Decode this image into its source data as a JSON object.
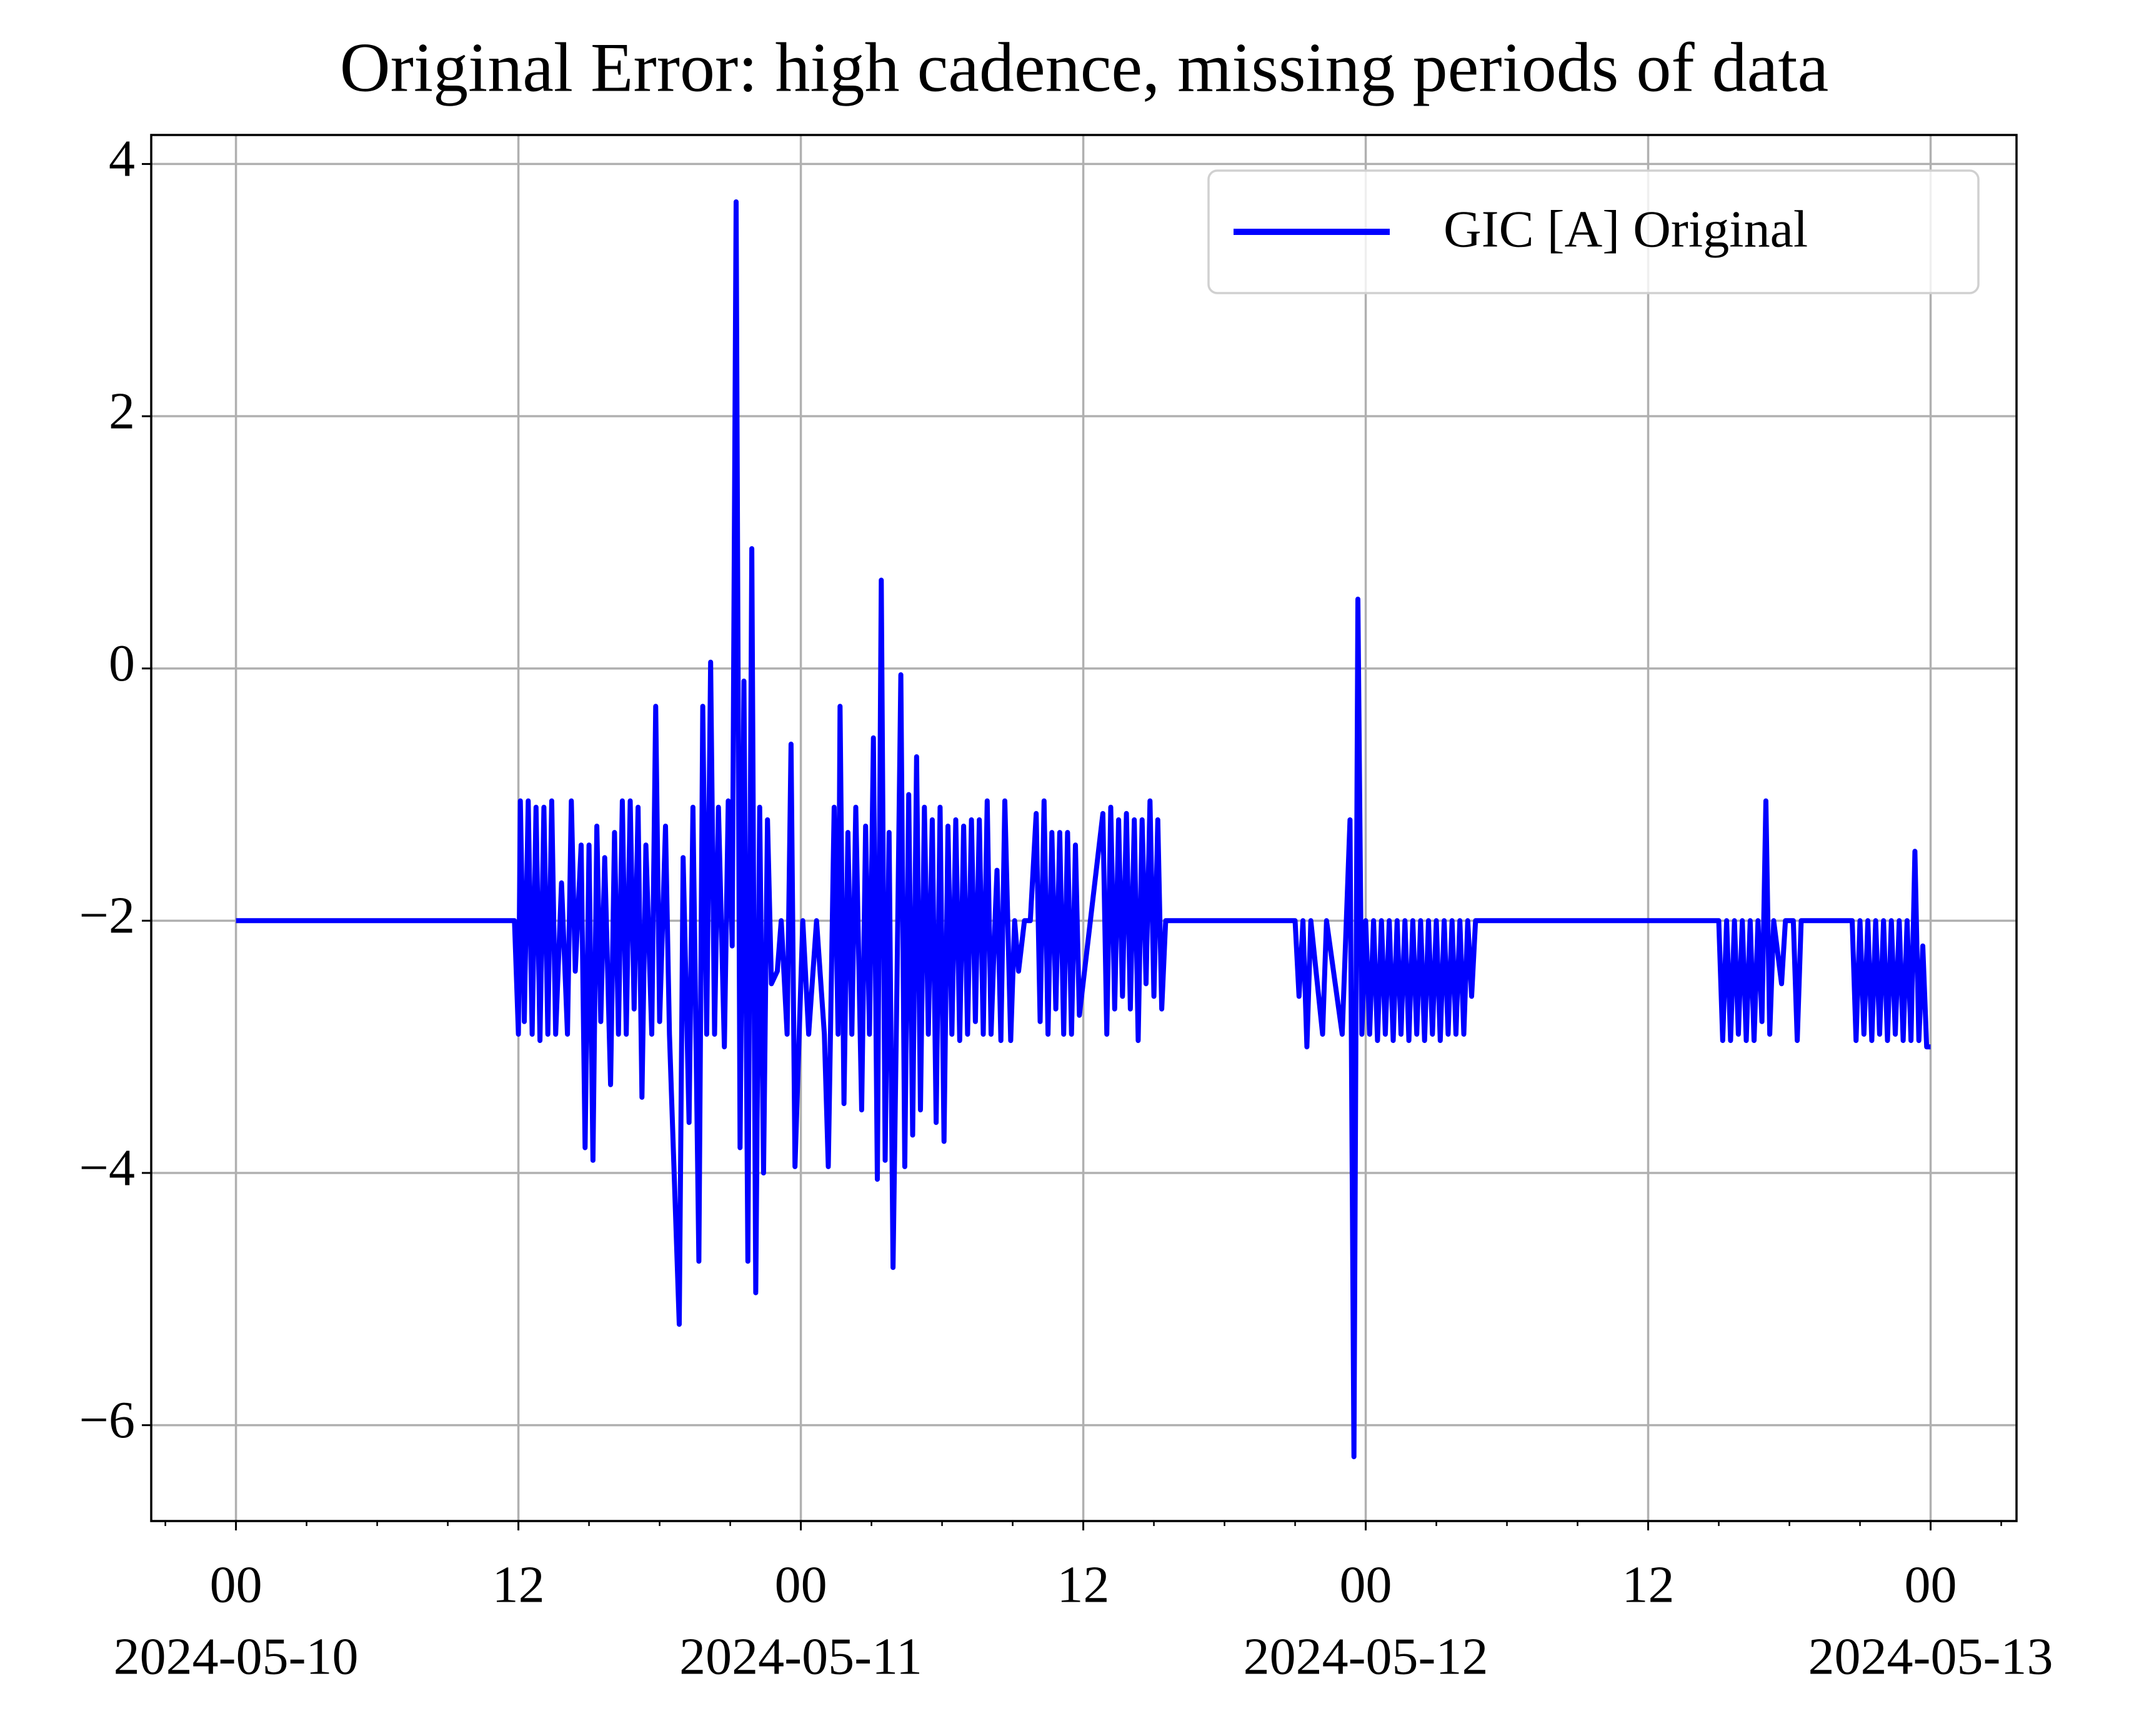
{
  "chart_data": {
    "type": "line",
    "title": "Original Error: high cadence, missing periods of data",
    "x": [
      "2024-05-10T00:00",
      "2024-05-10T11:50",
      "2024-05-10T12:00",
      "2024-05-10T12:05",
      "2024-05-10T12:15",
      "2024-05-10T12:25",
      "2024-05-10T12:35",
      "2024-05-10T12:45",
      "2024-05-10T12:55",
      "2024-05-10T13:05",
      "2024-05-10T13:15",
      "2024-05-10T13:25",
      "2024-05-10T13:35",
      "2024-05-10T13:50",
      "2024-05-10T14:05",
      "2024-05-10T14:15",
      "2024-05-10T14:25",
      "2024-05-10T14:40",
      "2024-05-10T14:50",
      "2024-05-10T15:00",
      "2024-05-10T15:10",
      "2024-05-10T15:20",
      "2024-05-10T15:30",
      "2024-05-10T15:40",
      "2024-05-10T15:55",
      "2024-05-10T16:05",
      "2024-05-10T16:15",
      "2024-05-10T16:25",
      "2024-05-10T16:35",
      "2024-05-10T16:45",
      "2024-05-10T16:55",
      "2024-05-10T17:05",
      "2024-05-10T17:15",
      "2024-05-10T17:25",
      "2024-05-10T17:40",
      "2024-05-10T17:50",
      "2024-05-10T18:00",
      "2024-05-10T18:15",
      "2024-05-10T18:25",
      "2024-05-10T18:50",
      "2024-05-10T19:00",
      "2024-05-10T19:15",
      "2024-05-10T19:25",
      "2024-05-10T19:40",
      "2024-05-10T19:50",
      "2024-05-10T20:00",
      "2024-05-10T20:10",
      "2024-05-10T20:20",
      "2024-05-10T20:30",
      "2024-05-10T20:45",
      "2024-05-10T20:55",
      "2024-05-10T21:05",
      "2024-05-10T21:15",
      "2024-05-10T21:25",
      "2024-05-10T21:35",
      "2024-05-10T21:45",
      "2024-05-10T21:55",
      "2024-05-10T22:05",
      "2024-05-10T22:15",
      "2024-05-10T22:25",
      "2024-05-10T22:35",
      "2024-05-10T22:45",
      "2024-05-10T23:00",
      "2024-05-10T23:10",
      "2024-05-10T23:25",
      "2024-05-10T23:35",
      "2024-05-10T23:45",
      "2024-05-11T00:05",
      "2024-05-11T00:20",
      "2024-05-11T00:40",
      "2024-05-11T01:00",
      "2024-05-11T01:10",
      "2024-05-11T01:25",
      "2024-05-11T01:35",
      "2024-05-11T01:40",
      "2024-05-11T01:50",
      "2024-05-11T02:00",
      "2024-05-11T02:10",
      "2024-05-11T02:20",
      "2024-05-11T02:35",
      "2024-05-11T02:45",
      "2024-05-11T02:55",
      "2024-05-11T03:05",
      "2024-05-11T03:15",
      "2024-05-11T03:25",
      "2024-05-11T03:35",
      "2024-05-11T03:45",
      "2024-05-11T03:55",
      "2024-05-11T04:05",
      "2024-05-11T04:15",
      "2024-05-11T04:25",
      "2024-05-11T04:35",
      "2024-05-11T04:45",
      "2024-05-11T04:55",
      "2024-05-11T05:05",
      "2024-05-11T05:15",
      "2024-05-11T05:25",
      "2024-05-11T05:35",
      "2024-05-11T05:45",
      "2024-05-11T05:55",
      "2024-05-11T06:05",
      "2024-05-11T06:15",
      "2024-05-11T06:25",
      "2024-05-11T06:35",
      "2024-05-11T06:45",
      "2024-05-11T06:55",
      "2024-05-11T07:05",
      "2024-05-11T07:15",
      "2024-05-11T07:25",
      "2024-05-11T07:35",
      "2024-05-11T07:45",
      "2024-05-11T07:55",
      "2024-05-11T08:05",
      "2024-05-11T08:15",
      "2024-05-11T08:20",
      "2024-05-11T08:30",
      "2024-05-11T08:40",
      "2024-05-11T08:55",
      "2024-05-11T09:05",
      "2024-05-11T09:15",
      "2024-05-11T09:30",
      "2024-05-11T09:45",
      "2024-05-11T10:00",
      "2024-05-11T10:10",
      "2024-05-11T10:20",
      "2024-05-11T10:30",
      "2024-05-11T10:40",
      "2024-05-11T10:50",
      "2024-05-11T11:00",
      "2024-05-11T11:10",
      "2024-05-11T11:20",
      "2024-05-11T11:30",
      "2024-05-11T11:40",
      "2024-05-11T11:50",
      "2024-05-11T12:50",
      "2024-05-11T13:00",
      "2024-05-11T13:10",
      "2024-05-11T13:20",
      "2024-05-11T13:30",
      "2024-05-11T13:40",
      "2024-05-11T13:50",
      "2024-05-11T14:00",
      "2024-05-11T14:10",
      "2024-05-11T14:20",
      "2024-05-11T14:30",
      "2024-05-11T14:40",
      "2024-05-11T14:50",
      "2024-05-11T15:00",
      "2024-05-11T15:10",
      "2024-05-11T15:20",
      "2024-05-11T15:30",
      "2024-05-11T21:00",
      "2024-05-11T21:10",
      "2024-05-11T21:20",
      "2024-05-11T21:30",
      "2024-05-11T21:40",
      "2024-05-11T22:10",
      "2024-05-11T22:20",
      "2024-05-11T23:00",
      "2024-05-11T23:20",
      "2024-05-11T23:30",
      "2024-05-11T23:40",
      "2024-05-11T23:50",
      "2024-05-12T00:00",
      "2024-05-12T00:10",
      "2024-05-12T00:20",
      "2024-05-12T00:30",
      "2024-05-12T00:40",
      "2024-05-12T00:50",
      "2024-05-12T01:00",
      "2024-05-12T01:10",
      "2024-05-12T01:20",
      "2024-05-12T01:30",
      "2024-05-12T01:40",
      "2024-05-12T01:50",
      "2024-05-12T02:00",
      "2024-05-12T02:10",
      "2024-05-12T02:20",
      "2024-05-12T02:30",
      "2024-05-12T02:40",
      "2024-05-12T02:50",
      "2024-05-12T03:00",
      "2024-05-12T03:10",
      "2024-05-12T03:20",
      "2024-05-12T03:30",
      "2024-05-12T03:40",
      "2024-05-12T03:50",
      "2024-05-12T04:00",
      "2024-05-12T04:10",
      "2024-05-12T04:20",
      "2024-05-12T04:30",
      "2024-05-12T04:40",
      "2024-05-12T15:00",
      "2024-05-12T15:10",
      "2024-05-12T15:20",
      "2024-05-12T15:30",
      "2024-05-12T15:40",
      "2024-05-12T15:50",
      "2024-05-12T16:00",
      "2024-05-12T16:10",
      "2024-05-12T16:20",
      "2024-05-12T16:30",
      "2024-05-12T16:40",
      "2024-05-12T16:50",
      "2024-05-12T17:00",
      "2024-05-12T17:10",
      "2024-05-12T17:20",
      "2024-05-12T17:40",
      "2024-05-12T17:50",
      "2024-05-12T18:10",
      "2024-05-12T18:20",
      "2024-05-12T18:30",
      "2024-05-12T20:40",
      "2024-05-12T20:50",
      "2024-05-12T21:00",
      "2024-05-12T21:10",
      "2024-05-12T21:20",
      "2024-05-12T21:30",
      "2024-05-12T21:40",
      "2024-05-12T21:50",
      "2024-05-12T22:00",
      "2024-05-12T22:10",
      "2024-05-12T22:20",
      "2024-05-12T22:30",
      "2024-05-12T22:40",
      "2024-05-12T22:50",
      "2024-05-12T23:00",
      "2024-05-12T23:10",
      "2024-05-12T23:20",
      "2024-05-12T23:30",
      "2024-05-12T23:40",
      "2024-05-12T23:50",
      "2024-05-13T00:00"
    ],
    "series": [
      {
        "name": "GIC [A] Original",
        "color": "#0000ff",
        "values": [
          -2,
          -2,
          -2.9,
          -1.05,
          -2.8,
          -1.05,
          -2.9,
          -1.1,
          -2.95,
          -1.1,
          -2.9,
          -1.05,
          -2.9,
          -1.7,
          -2.9,
          -1.05,
          -2.4,
          -1.4,
          -3.8,
          -1.4,
          -3.9,
          -1.25,
          -2.8,
          -1.5,
          -3.3,
          -1.3,
          -2.9,
          -1.05,
          -2.9,
          -1.05,
          -2.7,
          -1.1,
          -3.4,
          -1.4,
          -2.9,
          -0.3,
          -2.8,
          -1.25,
          -2.9,
          -5.2,
          -1.5,
          -3.6,
          -1.1,
          -4.7,
          -0.3,
          -2.9,
          0.05,
          -2.9,
          -1.1,
          -3.0,
          -1.05,
          -2.2,
          3.7,
          -3.8,
          -0.1,
          -4.7,
          0.95,
          -4.95,
          -1.1,
          -4.0,
          -1.2,
          -2.5,
          -2.4,
          -2.0,
          -2.9,
          -0.6,
          -3.95,
          -2.0,
          -2.9,
          -2.0,
          -2.9,
          -3.95,
          -1.1,
          -2.9,
          -0.3,
          -3.45,
          -1.3,
          -2.9,
          -1.1,
          -3.5,
          -1.25,
          -2.9,
          -0.55,
          -4.05,
          0.7,
          -3.9,
          -1.3,
          -4.75,
          -2.5,
          -0.05,
          -3.95,
          -1.0,
          -3.7,
          -0.7,
          -3.5,
          -1.1,
          -2.9,
          -1.2,
          -3.6,
          -1.1,
          -3.75,
          -1.25,
          -2.9,
          -1.2,
          -2.95,
          -1.25,
          -2.9,
          -1.2,
          -2.8,
          -1.2,
          -2.9,
          -1.05,
          -2.9,
          -2.0,
          -1.6,
          -2.95,
          -1.05,
          -2.95,
          -2.0,
          -2.4,
          -2.0,
          -2.0,
          -1.15,
          -2.8,
          -1.05,
          -2.9,
          -1.3,
          -2.7,
          -1.3,
          -2.9,
          -1.3,
          -2.9,
          -1.4,
          -2.75,
          -1.15,
          -2.9,
          -1.1,
          -2.7,
          -1.2,
          -2.6,
          -1.15,
          -2.7,
          -1.2,
          -2.95,
          -1.2,
          -2.5,
          -1.05,
          -2.6,
          -1.2,
          -2.7,
          -2.0,
          -2.0,
          -2.6,
          -2.0,
          -3.0,
          -2.0,
          -2.9,
          -2.0,
          -2.9,
          -1.2,
          -6.25,
          0.55,
          -2.9,
          -2.0,
          -2.9,
          -2.0,
          -2.95,
          -2.0,
          -2.9,
          -2.0,
          -2.95,
          -2.0,
          -2.9,
          -2.0,
          -2.95,
          -2.0,
          -2.9,
          -2.0,
          -2.95,
          -2.0,
          -2.9,
          -2.0,
          -2.95,
          -2.0,
          -2.9,
          -2.0,
          -2.9,
          -2.0,
          -2.9,
          -2.0,
          -2.6,
          -2.0,
          -2.0,
          -2.95,
          -2.0,
          -2.95,
          -2.0,
          -2.9,
          -2.0,
          -2.95,
          -2.0,
          -2.95,
          -2.0,
          -2.8,
          -1.05,
          -2.9,
          -2.0,
          -2.5,
          -2.0,
          -2.0,
          -2.95,
          -2.0,
          -2.0,
          -2.95,
          -2.0,
          -2.9,
          -2.0,
          -2.95,
          -2.0,
          -2.9,
          -2.0,
          -2.95,
          -2.0,
          -2.9,
          -2.0,
          -2.95,
          -2.0,
          -2.95,
          -1.45,
          -2.95,
          -2.2,
          -3.0,
          -3.0
        ]
      }
    ],
    "xlim": [
      "2024-05-09T20:24",
      "2024-05-13T03:39"
    ],
    "xticks": [
      {
        "value": "2024-05-10T00:00",
        "label": "00",
        "date": "2024-05-10"
      },
      {
        "value": "2024-05-10T12:00",
        "label": "12"
      },
      {
        "value": "2024-05-11T00:00",
        "label": "00",
        "date": "2024-05-11"
      },
      {
        "value": "2024-05-11T12:00",
        "label": "12"
      },
      {
        "value": "2024-05-12T00:00",
        "label": "00",
        "date": "2024-05-12"
      },
      {
        "value": "2024-05-12T12:00",
        "label": "12"
      },
      {
        "value": "2024-05-13T00:00",
        "label": "00",
        "date": "2024-05-13"
      }
    ],
    "xminorticks": [
      "2024-05-09T21:00",
      "2024-05-10T03:00",
      "2024-05-10T06:00",
      "2024-05-10T09:00",
      "2024-05-10T15:00",
      "2024-05-10T18:00",
      "2024-05-10T21:00",
      "2024-05-11T03:00",
      "2024-05-11T06:00",
      "2024-05-11T09:00",
      "2024-05-11T15:00",
      "2024-05-11T18:00",
      "2024-05-11T21:00",
      "2024-05-12T03:00",
      "2024-05-12T06:00",
      "2024-05-12T09:00",
      "2024-05-12T15:00",
      "2024-05-12T18:00",
      "2024-05-12T21:00",
      "2024-05-13T03:00"
    ],
    "ylim": [
      -6.76,
      4.23
    ],
    "yticks": [
      {
        "value": -6,
        "label": "−6"
      },
      {
        "value": -4,
        "label": "−4"
      },
      {
        "value": -2,
        "label": "−2"
      },
      0,
      2,
      4
    ],
    "grid": true,
    "legend": "upper right"
  }
}
